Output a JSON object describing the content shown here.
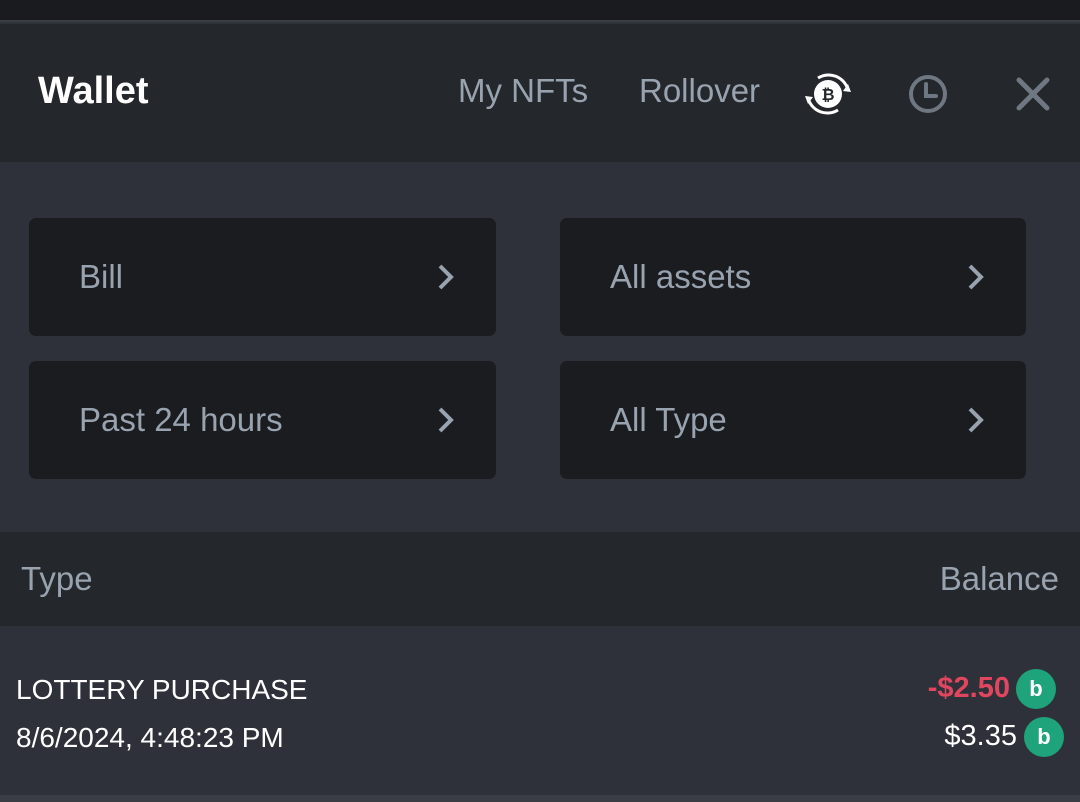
{
  "header": {
    "title": "Wallet",
    "nav": [
      "My NFTs",
      "Rollover"
    ],
    "icons": [
      "bitcoin-swap-icon",
      "history-clock-icon",
      "close-icon"
    ]
  },
  "filters": [
    {
      "label": "Bill"
    },
    {
      "label": "All assets"
    },
    {
      "label": "Past 24 hours"
    },
    {
      "label": "All Type"
    }
  ],
  "table": {
    "columns": [
      "Type",
      "Balance"
    ],
    "rows": [
      {
        "type": "LOTTERY PURCHASE",
        "datetime": "8/6/2024, 4:48:23 PM",
        "amount": "-$2.50",
        "balance": "$3.35",
        "currency_icon": "bc-coin-icon"
      }
    ]
  },
  "colors": {
    "negative": "#e0475f",
    "coin": "#1fa37a"
  }
}
